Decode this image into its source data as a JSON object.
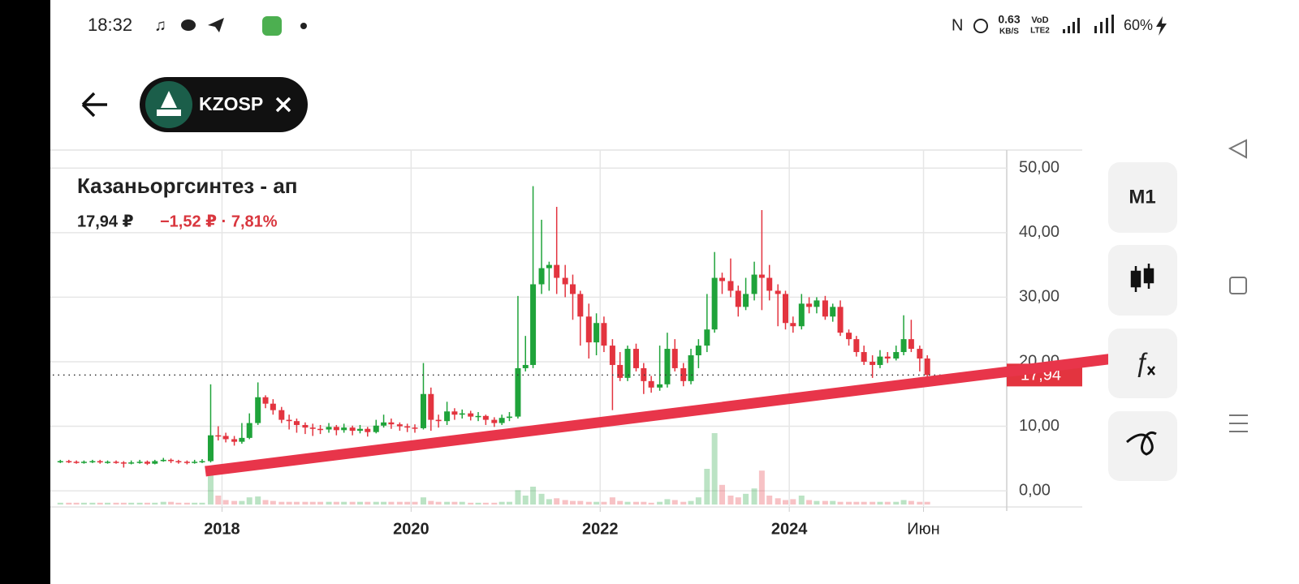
{
  "status_bar": {
    "time": "18:32",
    "net_speed": "0.63",
    "net_unit": "KB/S",
    "volte": "VoD",
    "lte": "LTE2",
    "battery": "60%"
  },
  "header": {
    "ticker": "KZOSP"
  },
  "buttons": {
    "period": "M1"
  },
  "chart_data": {
    "type": "candlestick",
    "title": "Казаньоргсинтез - ап",
    "price": "17,94 ₽",
    "change": "−1,52 ₽ · 7,81%",
    "last_price": {
      "value": 17.94,
      "label": "17,94"
    },
    "up_color": "#1fa33a",
    "down_color": "#e3343f",
    "xlim": [
      2016.21,
      2026.3
    ],
    "ylim": [
      -2.5,
      52.8
    ],
    "xticks": [
      2018,
      2020,
      2022,
      2024,
      {
        "value": 2025.42,
        "label": "Июн"
      }
    ],
    "yticks": [
      {
        "value": 0,
        "label": "0,00"
      },
      {
        "value": 10,
        "label": "10,00"
      },
      {
        "value": 20,
        "label": "20,00"
      },
      {
        "value": 30,
        "label": "30,00"
      },
      {
        "value": 40,
        "label": "40,00"
      },
      {
        "value": 50,
        "label": "50,00"
      }
    ],
    "grid": true,
    "x": [
      2016.29,
      2016.38,
      2016.46,
      2016.54,
      2016.63,
      2016.71,
      2016.79,
      2016.88,
      2016.96,
      2017.04,
      2017.13,
      2017.21,
      2017.29,
      2017.38,
      2017.46,
      2017.54,
      2017.63,
      2017.71,
      2017.79,
      2017.88,
      2017.96,
      2018.04,
      2018.13,
      2018.21,
      2018.29,
      2018.38,
      2018.46,
      2018.54,
      2018.63,
      2018.71,
      2018.79,
      2018.88,
      2018.96,
      2019.04,
      2019.13,
      2019.21,
      2019.29,
      2019.38,
      2019.46,
      2019.54,
      2019.63,
      2019.71,
      2019.79,
      2019.88,
      2019.96,
      2020.04,
      2020.13,
      2020.21,
      2020.29,
      2020.38,
      2020.46,
      2020.54,
      2020.63,
      2020.71,
      2020.79,
      2020.88,
      2020.96,
      2021.04,
      2021.13,
      2021.21,
      2021.29,
      2021.38,
      2021.46,
      2021.54,
      2021.63,
      2021.71,
      2021.79,
      2021.88,
      2021.96,
      2022.04,
      2022.13,
      2022.21,
      2022.29,
      2022.38,
      2022.46,
      2022.54,
      2022.63,
      2022.71,
      2022.79,
      2022.88,
      2022.96,
      2023.04,
      2023.13,
      2023.21,
      2023.29,
      2023.38,
      2023.46,
      2023.54,
      2023.63,
      2023.71,
      2023.79,
      2023.88,
      2023.96,
      2024.04,
      2024.13,
      2024.21,
      2024.29,
      2024.38,
      2024.46,
      2024.54,
      2024.63,
      2024.71,
      2024.79,
      2024.88,
      2024.96,
      2025.04,
      2025.13,
      2025.21,
      2025.29,
      2025.38,
      2025.46
    ],
    "open": [
      4.5,
      4.6,
      4.5,
      4.4,
      4.5,
      4.6,
      4.4,
      4.5,
      4.4,
      4.3,
      4.4,
      4.5,
      4.2,
      4.6,
      4.8,
      4.6,
      4.5,
      4.4,
      4.5,
      4.6,
      8.6,
      8.5,
      8.0,
      7.6,
      8.2,
      10.5,
      14.5,
      13.5,
      12.5,
      11.0,
      10.8,
      10.2,
      9.8,
      9.6,
      9.5,
      9.9,
      9.4,
      9.8,
      9.3,
      9.6,
      9.1,
      10.1,
      10.6,
      10.3,
      10.0,
      9.8,
      9.7,
      15.0,
      11.0,
      10.8,
      12.3,
      11.8,
      12.0,
      11.5,
      11.6,
      11.0,
      10.5,
      11.3,
      11.5,
      19.0,
      19.5,
      32.0,
      34.5,
      35.0,
      33.0,
      32.0,
      30.5,
      27.0,
      23.0,
      26.0,
      22.5,
      19.5,
      17.5,
      22.0,
      19.0,
      17.0,
      16.0,
      16.5,
      22.0,
      19.0,
      17.0,
      21.0,
      22.5,
      25.0,
      33.0,
      32.5,
      31.0,
      28.5,
      30.5,
      33.5,
      33.0,
      31.0,
      30.5,
      26.0,
      25.5,
      29.0,
      28.5,
      29.5,
      27.0,
      28.5,
      24.5,
      23.5,
      21.5,
      20.0,
      19.5,
      20.8,
      20.5,
      21.5,
      23.5,
      22.0,
      20.5
    ],
    "high": [
      4.8,
      4.8,
      4.7,
      4.7,
      4.8,
      4.8,
      4.7,
      4.7,
      4.6,
      4.7,
      4.8,
      4.7,
      4.8,
      5.1,
      5.0,
      4.8,
      4.7,
      4.8,
      4.9,
      16.5,
      10.0,
      9.0,
      8.5,
      10.5,
      12.0,
      16.8,
      14.8,
      14.2,
      13.0,
      11.8,
      11.2,
      10.6,
      10.4,
      10.2,
      10.5,
      10.2,
      10.4,
      10.1,
      10.2,
      9.9,
      11.0,
      11.8,
      11.2,
      10.6,
      10.4,
      10.3,
      19.8,
      16.0,
      11.8,
      13.8,
      12.8,
      12.6,
      12.4,
      12.2,
      11.8,
      11.4,
      11.8,
      12.2,
      30.2,
      24.0,
      47.2,
      42.0,
      35.5,
      44.0,
      35.0,
      33.5,
      31.0,
      29.0,
      27.5,
      27.0,
      23.5,
      21.5,
      22.5,
      22.8,
      19.8,
      17.8,
      22.5,
      24.5,
      23.5,
      19.8,
      22.0,
      23.5,
      30.5,
      37.0,
      33.8,
      36.0,
      31.8,
      33.0,
      35.5,
      43.5,
      35.0,
      32.0,
      31.0,
      27.0,
      30.5,
      30.0,
      30.0,
      30.2,
      29.0,
      29.5,
      25.0,
      24.0,
      22.5,
      21.0,
      21.8,
      21.5,
      22.5,
      27.2,
      26.5,
      22.5,
      21.0
    ],
    "low": [
      4.3,
      4.3,
      4.2,
      4.2,
      4.3,
      4.2,
      4.2,
      4.2,
      3.6,
      4.1,
      4.2,
      4.0,
      4.1,
      4.5,
      4.3,
      4.2,
      4.1,
      4.2,
      4.3,
      4.4,
      7.8,
      7.5,
      7.0,
      7.3,
      8.0,
      10.2,
      12.8,
      11.8,
      10.5,
      9.5,
      9.0,
      8.8,
      8.5,
      8.8,
      9.0,
      8.6,
      9.0,
      8.6,
      8.9,
      8.4,
      8.9,
      9.8,
      9.6,
      9.3,
      9.1,
      9.0,
      9.5,
      9.3,
      9.8,
      10.2,
      11.0,
      11.2,
      10.9,
      10.8,
      10.2,
      9.9,
      10.2,
      10.8,
      11.2,
      18.5,
      19.0,
      30.5,
      31.0,
      30.5,
      30.0,
      26.5,
      22.5,
      20.5,
      21.0,
      21.5,
      12.5,
      17.0,
      17.0,
      18.5,
      15.0,
      15.2,
      15.5,
      16.0,
      18.5,
      16.2,
      16.5,
      19.0,
      21.5,
      24.5,
      30.5,
      30.0,
      27.0,
      28.0,
      29.5,
      28.0,
      29.5,
      25.5,
      25.0,
      24.5,
      25.0,
      27.5,
      27.5,
      26.5,
      26.2,
      24.0,
      22.5,
      20.8,
      19.5,
      17.5,
      19.0,
      19.8,
      20.2,
      21.0,
      21.5,
      18.5,
      17.6
    ],
    "close": [
      4.6,
      4.5,
      4.4,
      4.5,
      4.6,
      4.4,
      4.5,
      4.4,
      4.3,
      4.4,
      4.5,
      4.2,
      4.6,
      4.8,
      4.6,
      4.5,
      4.4,
      4.5,
      4.6,
      8.6,
      8.5,
      8.0,
      7.6,
      8.2,
      10.5,
      14.5,
      13.5,
      12.5,
      11.0,
      10.8,
      10.2,
      9.8,
      9.6,
      9.5,
      9.9,
      9.4,
      9.8,
      9.3,
      9.6,
      9.1,
      10.1,
      10.6,
      10.3,
      10.0,
      9.8,
      9.7,
      15.0,
      11.0,
      10.8,
      12.3,
      11.8,
      12.0,
      11.5,
      11.6,
      11.0,
      10.5,
      11.3,
      11.5,
      19.0,
      19.5,
      32.0,
      34.5,
      35.0,
      33.0,
      32.0,
      30.5,
      27.0,
      23.0,
      26.0,
      22.5,
      19.5,
      17.5,
      22.0,
      19.0,
      17.0,
      16.0,
      16.5,
      22.0,
      19.0,
      17.0,
      21.0,
      22.5,
      25.0,
      33.0,
      32.5,
      31.0,
      28.5,
      30.5,
      33.5,
      33.0,
      31.0,
      30.5,
      26.0,
      25.5,
      29.0,
      28.5,
      29.5,
      27.0,
      28.5,
      24.5,
      23.5,
      21.5,
      20.0,
      19.5,
      20.8,
      20.5,
      21.5,
      23.5,
      22.0,
      20.5,
      17.94
    ],
    "volume": [
      0.2,
      0.2,
      0.2,
      0.2,
      0.2,
      0.2,
      0.2,
      0.2,
      0.2,
      0.2,
      0.2,
      0.2,
      0.2,
      0.3,
      0.3,
      0.2,
      0.2,
      0.2,
      0.2,
      4.0,
      1.0,
      0.5,
      0.4,
      0.4,
      0.8,
      0.9,
      0.5,
      0.4,
      0.3,
      0.3,
      0.3,
      0.3,
      0.3,
      0.3,
      0.3,
      0.3,
      0.3,
      0.3,
      0.3,
      0.3,
      0.3,
      0.3,
      0.3,
      0.3,
      0.3,
      0.3,
      0.8,
      0.4,
      0.3,
      0.3,
      0.3,
      0.3,
      0.2,
      0.2,
      0.2,
      0.2,
      0.3,
      0.3,
      1.6,
      1.0,
      2.0,
      1.2,
      0.6,
      0.7,
      0.5,
      0.4,
      0.4,
      0.3,
      0.3,
      0.3,
      0.8,
      0.4,
      0.3,
      0.3,
      0.3,
      0.2,
      0.3,
      0.6,
      0.5,
      0.3,
      0.4,
      0.8,
      4.0,
      8.0,
      2.2,
      1.0,
      0.8,
      1.2,
      1.8,
      3.8,
      1.0,
      0.7,
      0.5,
      0.6,
      1.0,
      0.5,
      0.4,
      0.4,
      0.4,
      0.3,
      0.3,
      0.3,
      0.3,
      0.3,
      0.3,
      0.3,
      0.3,
      0.5,
      0.4,
      0.3,
      0.3
    ]
  }
}
